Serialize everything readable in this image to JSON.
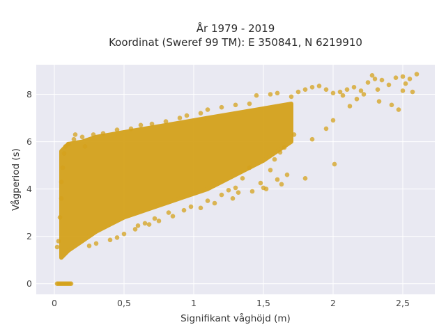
{
  "chart_data": {
    "type": "scatter",
    "title_line1": "År 1979 - 2019",
    "title_line2": "Koordinat (Sweref 99 TM): E 350841, N 6219910",
    "xlabel": "Signifikant våghöjd (m)",
    "ylabel": "Vågperiod (s)",
    "xlim": [
      -0.13,
      2.73
    ],
    "ylim": [
      -0.45,
      9.25
    ],
    "x_ticks": [
      {
        "value": 0,
        "label": "0"
      },
      {
        "value": 0.5,
        "label": "0,5"
      },
      {
        "value": 1,
        "label": "1"
      },
      {
        "value": 1.5,
        "label": "1,5"
      },
      {
        "value": 2,
        "label": "2"
      },
      {
        "value": 2.5,
        "label": "2,5"
      }
    ],
    "y_ticks": [
      {
        "value": 0,
        "label": "0"
      },
      {
        "value": 2,
        "label": "2"
      },
      {
        "value": 4,
        "label": "4"
      },
      {
        "value": 6,
        "label": "6"
      },
      {
        "value": 8,
        "label": "8"
      }
    ],
    "grid": true,
    "marker_color": "#D4A21C",
    "plot_background": "#E9E9F2",
    "density_band": {
      "x": [
        0.05,
        0.1,
        0.2,
        0.3,
        0.4,
        0.5,
        0.6,
        0.7,
        0.8,
        0.9,
        1.0,
        1.1,
        1.2,
        1.3,
        1.4,
        1.5,
        1.6,
        1.7
      ],
      "y_low": [
        1.1,
        1.4,
        1.8,
        2.2,
        2.5,
        2.8,
        3.0,
        3.2,
        3.4,
        3.6,
        3.8,
        4.0,
        4.3,
        4.6,
        4.9,
        5.2,
        5.6,
        6.0
      ],
      "y_high": [
        5.6,
        5.9,
        6.0,
        6.2,
        6.3,
        6.4,
        6.5,
        6.6,
        6.7,
        6.8,
        6.9,
        7.0,
        7.1,
        7.2,
        7.3,
        7.4,
        7.5,
        7.6
      ]
    },
    "points": [
      [
        0.02,
        1.55
      ],
      [
        0.03,
        1.8
      ],
      [
        0.04,
        2.8
      ],
      [
        0.05,
        3.6
      ],
      [
        0.05,
        4.3
      ],
      [
        0.06,
        4.9
      ],
      [
        0.07,
        5.5
      ],
      [
        0.08,
        5.8
      ],
      [
        0.1,
        5.9
      ],
      [
        0.14,
        6.1
      ],
      [
        0.15,
        6.3
      ],
      [
        0.2,
        6.2
      ],
      [
        0.22,
        5.8
      ],
      [
        0.28,
        6.3
      ],
      [
        0.35,
        6.35
      ],
      [
        0.45,
        6.5
      ],
      [
        0.55,
        6.55
      ],
      [
        0.62,
        6.7
      ],
      [
        0.7,
        6.75
      ],
      [
        0.8,
        6.85
      ],
      [
        0.9,
        7.0
      ],
      [
        0.95,
        7.1
      ],
      [
        1.05,
        7.2
      ],
      [
        1.1,
        7.35
      ],
      [
        1.2,
        7.45
      ],
      [
        1.3,
        7.55
      ],
      [
        1.4,
        7.6
      ],
      [
        1.45,
        7.95
      ],
      [
        1.55,
        8.0
      ],
      [
        1.6,
        8.05
      ],
      [
        1.7,
        7.9
      ],
      [
        1.75,
        8.1
      ],
      [
        1.8,
        8.2
      ],
      [
        1.85,
        8.3
      ],
      [
        1.9,
        8.35
      ],
      [
        1.95,
        8.2
      ],
      [
        2.0,
        8.05
      ],
      [
        2.05,
        8.1
      ],
      [
        2.07,
        7.95
      ],
      [
        2.1,
        8.2
      ],
      [
        2.12,
        7.5
      ],
      [
        2.15,
        8.3
      ],
      [
        2.17,
        7.8
      ],
      [
        2.2,
        8.15
      ],
      [
        2.22,
        8.0
      ],
      [
        2.25,
        8.5
      ],
      [
        2.28,
        8.8
      ],
      [
        2.3,
        8.65
      ],
      [
        2.32,
        8.2
      ],
      [
        2.33,
        7.7
      ],
      [
        2.35,
        8.6
      ],
      [
        2.4,
        8.4
      ],
      [
        2.42,
        7.55
      ],
      [
        2.45,
        8.7
      ],
      [
        2.47,
        7.35
      ],
      [
        2.5,
        8.75
      ],
      [
        2.5,
        8.15
      ],
      [
        2.52,
        8.45
      ],
      [
        2.55,
        8.65
      ],
      [
        2.57,
        8.1
      ],
      [
        2.6,
        8.85
      ],
      [
        1.72,
        6.3
      ],
      [
        1.85,
        6.1
      ],
      [
        1.95,
        6.55
      ],
      [
        2.0,
        6.9
      ],
      [
        1.65,
        5.75
      ],
      [
        1.62,
        5.55
      ],
      [
        1.58,
        5.25
      ],
      [
        1.55,
        4.8
      ],
      [
        1.6,
        4.4
      ],
      [
        1.52,
        4.0
      ],
      [
        1.48,
        4.25
      ],
      [
        1.4,
        4.9
      ],
      [
        1.35,
        4.45
      ],
      [
        1.3,
        4.05
      ],
      [
        1.28,
        3.6
      ],
      [
        1.2,
        3.75
      ],
      [
        1.15,
        3.4
      ],
      [
        1.1,
        3.5
      ],
      [
        1.05,
        3.2
      ],
      [
        0.98,
        3.25
      ],
      [
        0.93,
        3.1
      ],
      [
        0.85,
        2.85
      ],
      [
        0.82,
        3.0
      ],
      [
        0.75,
        2.65
      ],
      [
        0.72,
        2.75
      ],
      [
        0.68,
        2.5
      ],
      [
        0.65,
        2.55
      ],
      [
        0.6,
        2.45
      ],
      [
        0.58,
        2.3
      ],
      [
        0.5,
        2.1
      ],
      [
        0.45,
        1.95
      ],
      [
        0.4,
        1.85
      ],
      [
        0.3,
        1.7
      ],
      [
        0.25,
        1.6
      ],
      [
        1.8,
        4.45
      ],
      [
        2.01,
        5.05
      ],
      [
        1.63,
        4.2
      ],
      [
        1.67,
        4.6
      ],
      [
        1.25,
        3.95
      ],
      [
        1.32,
        3.85
      ],
      [
        1.42,
        3.9
      ],
      [
        1.5,
        4.05
      ]
    ],
    "zero_points_x": [
      0.02,
      0.03,
      0.04,
      0.05,
      0.06,
      0.07,
      0.08,
      0.09,
      0.1,
      0.11,
      0.12
    ]
  }
}
